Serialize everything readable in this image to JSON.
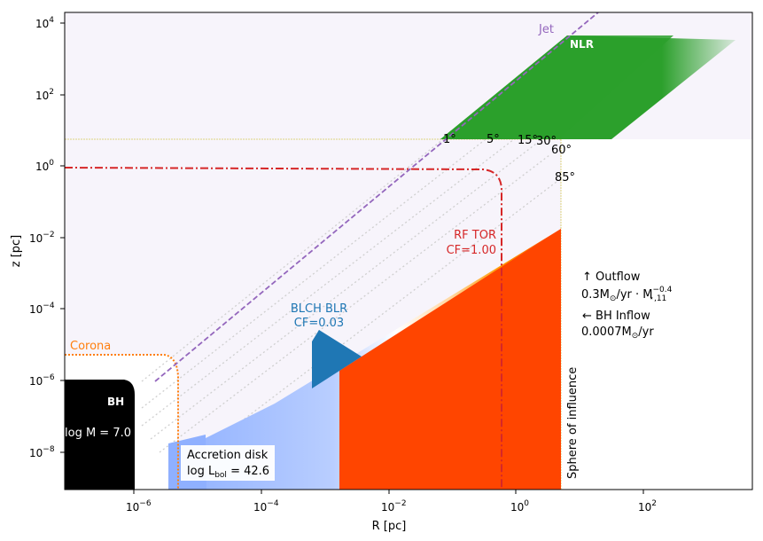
{
  "axes": {
    "xlabel": "R [pc]",
    "ylabel": "z [pc]",
    "x_scale": "log",
    "y_scale": "log",
    "xlim": [
      "1e-7",
      "5e3"
    ],
    "ylim": [
      "1e-9.8",
      "1e4.3"
    ],
    "x_ticks": [
      {
        "base": "10",
        "exp": "−6"
      },
      {
        "base": "10",
        "exp": "−4"
      },
      {
        "base": "10",
        "exp": "−2"
      },
      {
        "base": "10",
        "exp": "0"
      },
      {
        "base": "10",
        "exp": "2"
      }
    ],
    "y_ticks": [
      {
        "base": "10",
        "exp": "4"
      },
      {
        "base": "10",
        "exp": "2"
      },
      {
        "base": "10",
        "exp": "0"
      },
      {
        "base": "10",
        "exp": "−2"
      },
      {
        "base": "10",
        "exp": "−4"
      },
      {
        "base": "10",
        "exp": "−6"
      },
      {
        "base": "10",
        "exp": "−8"
      }
    ]
  },
  "labels": {
    "jet": "Jet",
    "nlr": "NLR",
    "corona": "Corona",
    "bh": "BH",
    "bh_mass": "log M = 7.0",
    "accretion_title": "Accretion disk",
    "accretion_lum": "log L",
    "accretion_lum_sub": "bol",
    "accretion_lum_val": " = 42.6",
    "blr_title": "BLCH BLR",
    "blr_cf": "CF=0.03",
    "tor_title": "RF TOR",
    "tor_cf": "CF=1.00",
    "sphere": "Sphere of influence",
    "outflow_line1": "↑  Outflow",
    "outflow_line2": "0.3M",
    "outflow_line2_sub": "⊙",
    "outflow_line2_rest": "/yr · M",
    "outflow_line2_sup": "−0.4",
    "outflow_line2_sub2": "⋆,11",
    "inflow_line1": "←  BH Inflow",
    "inflow_line2": "0.0007M",
    "inflow_line2_sub": "⊙",
    "inflow_line2_rest": "/yr"
  },
  "angles": [
    "1°",
    "5°",
    "15°",
    "30°",
    "60°",
    "85°"
  ],
  "colors": {
    "jet": "#9467bd",
    "nlr": "#2ca02c",
    "corona": "#ff7f0e",
    "blr": "#1f77b4",
    "torus": "#d62728",
    "disk_hot": "#ff4500",
    "disk_cool": "#8fb3ff",
    "background_shade": "#f6f3fa"
  }
}
